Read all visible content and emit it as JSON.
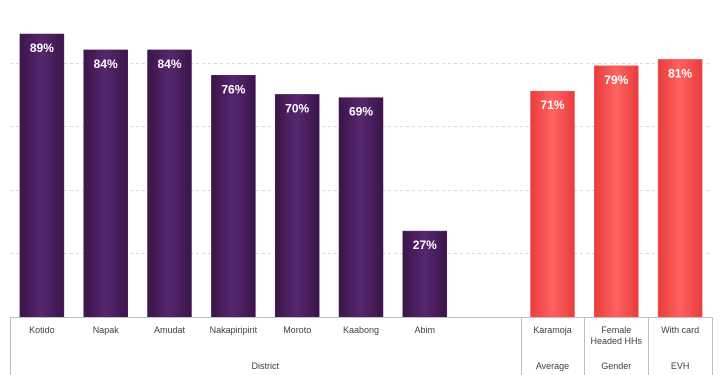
{
  "chart_data": {
    "type": "bar",
    "title": "",
    "xlabel": "",
    "ylabel": "",
    "ylim": [
      0,
      100
    ],
    "grid": true,
    "legend": "none",
    "value_format": "percent",
    "bars": [
      {
        "category": "Kotido",
        "value": 89,
        "label": "89%",
        "color": "#4a1f5e"
      },
      {
        "category": "Napak",
        "value": 84,
        "label": "84%",
        "color": "#4a1f5e"
      },
      {
        "category": "Amudat",
        "value": 84,
        "label": "84%",
        "color": "#4a1f5e"
      },
      {
        "category": "Nakapiripirit",
        "value": 76,
        "label": "76%",
        "color": "#4a1f5e"
      },
      {
        "category": "Moroto",
        "value": 70,
        "label": "70%",
        "color": "#4a1f5e"
      },
      {
        "category": "Kaabong",
        "value": 69,
        "label": "69%",
        "color": "#4a1f5e"
      },
      {
        "category": "Abim",
        "value": 27,
        "label": "27%",
        "color": "#4a1f5e"
      },
      {
        "category": "",
        "value": null,
        "label": "",
        "color": ""
      },
      {
        "category": "Karamoja",
        "value": 71,
        "label": "71%",
        "color": "#ff5050"
      },
      {
        "category": "Female Headed HHs",
        "value": 79,
        "label": "79%",
        "color": "#ff5050"
      },
      {
        "category": "With card",
        "value": 81,
        "label": "81%",
        "color": "#ff5050"
      }
    ],
    "groups": [
      {
        "label": "District",
        "from": 0,
        "to": 7
      },
      {
        "label": "Average",
        "from": 8,
        "to": 8
      },
      {
        "label": "Gender",
        "from": 9,
        "to": 9
      },
      {
        "label": "EVH",
        "from": 10,
        "to": 10
      }
    ]
  }
}
